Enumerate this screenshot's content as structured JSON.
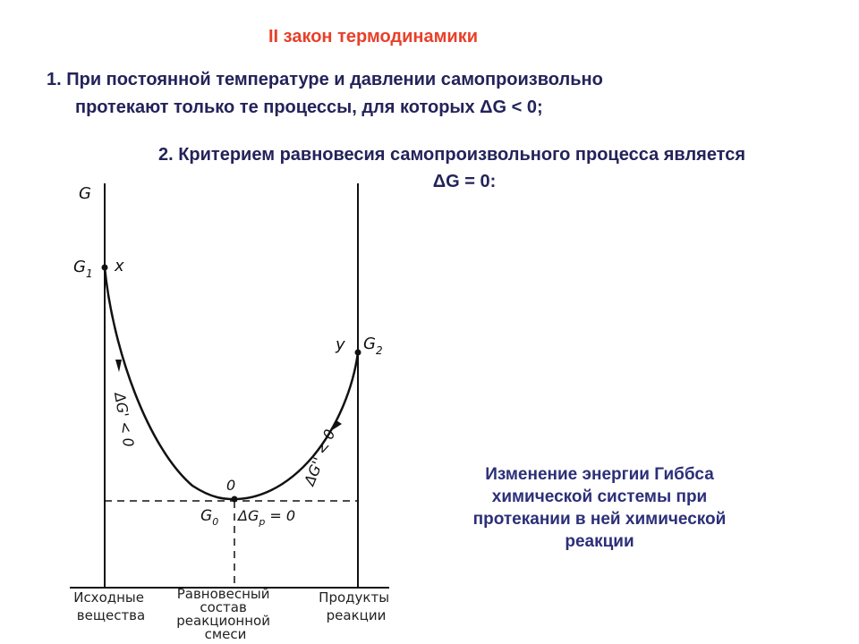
{
  "heading": "II закон термодинамики",
  "law1": {
    "line1": "1.  При  постоянной  температуре  и  давлении  самопроизвольно",
    "line2": "протекают только те процессы, для которых ΔG < 0;"
  },
  "law2": {
    "line1": "2. Критерием равновесия самопроизвольного процесса является",
    "line2": "ΔG = 0:"
  },
  "caption": {
    "line1": "Изменение энергии Гиббса",
    "line2": "химической системы при",
    "line3": "протекании в ней химической",
    "line4": "реакции"
  },
  "diagram": {
    "axis_g": "G",
    "g1": "G",
    "g1_sub": "1",
    "x_point": "x",
    "y_point": "y",
    "g2": "G",
    "g2_sub": "2",
    "o_point": "0",
    "g0": "G",
    "g0_sub": "0",
    "dg_p": "ΔG",
    "dg_p_sub": "p",
    "dg_p_eq": " = 0",
    "dg_prime": "ΔG' < 0",
    "dg_double_prime": "ΔG'' < 0",
    "left_label": [
      "Исходные",
      "вещества"
    ],
    "center_label": [
      "Равновесный",
      "состав",
      "реакционной",
      "смеси"
    ],
    "right_label": [
      "Продукты",
      "реакции"
    ]
  }
}
